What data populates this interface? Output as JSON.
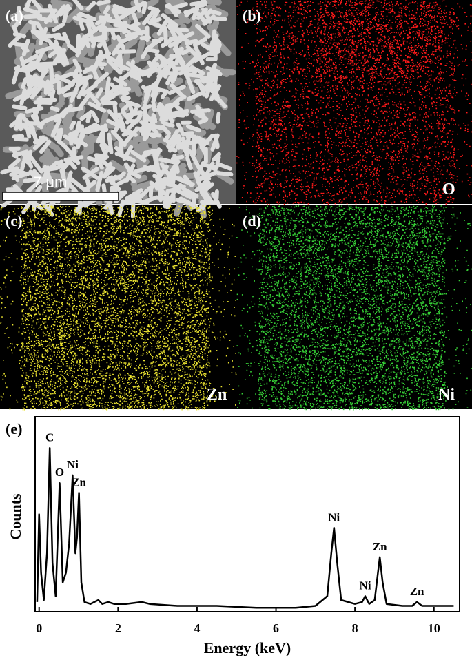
{
  "panels": [
    {
      "label": "(a)",
      "scale_bar": "7 μm"
    },
    {
      "label": "(b)",
      "element": "O"
    },
    {
      "label": "(c)",
      "element": "Zn"
    },
    {
      "label": "(d)",
      "element": "Ni"
    }
  ],
  "chart_data": {
    "type": "line",
    "panel_label": "(e)",
    "x_label": "Energy (keV)",
    "y_label": "Counts",
    "x": [
      -0.05,
      0.0,
      0.05,
      0.12,
      0.2,
      0.27,
      0.34,
      0.42,
      0.52,
      0.6,
      0.68,
      0.76,
      0.85,
      0.92,
      0.96,
      1.01,
      1.07,
      1.15,
      1.3,
      1.5,
      1.6,
      1.75,
      1.9,
      2.2,
      2.6,
      2.8,
      3.5,
      4.5,
      5.5,
      6.5,
      7.0,
      7.3,
      7.4,
      7.47,
      7.55,
      7.65,
      8.0,
      8.18,
      8.26,
      8.36,
      8.5,
      8.57,
      8.63,
      8.7,
      8.8,
      9.2,
      9.45,
      9.57,
      9.7,
      10.0,
      10.5
    ],
    "series": [
      {
        "color": "#000000",
        "values": [
          5,
          50,
          20,
          6,
          30,
          84,
          25,
          8,
          66,
          15,
          20,
          35,
          70,
          30,
          38,
          61,
          15,
          5,
          4,
          6,
          4,
          5,
          4,
          4,
          5,
          4,
          3,
          3,
          2,
          2,
          3,
          8,
          30,
          43,
          25,
          6,
          4,
          5,
          8,
          4,
          6,
          18,
          28,
          15,
          4,
          3,
          3,
          5,
          3,
          3,
          3
        ]
      }
    ],
    "annotations": [
      {
        "text": "C",
        "x": 0.27
      },
      {
        "text": "O",
        "x": 0.52
      },
      {
        "text": "Ni",
        "x": 0.85
      },
      {
        "text": "Zn",
        "x": 1.01
      },
      {
        "text": "Ni",
        "x": 7.47
      },
      {
        "text": "Ni",
        "x": 8.26
      },
      {
        "text": "Zn",
        "x": 8.63
      },
      {
        "text": "Zn",
        "x": 9.57
      }
    ],
    "xlim": [
      -0.1,
      10.65
    ],
    "ylim": [
      0,
      100
    ],
    "xticks": [
      0,
      2,
      4,
      6,
      8,
      10
    ]
  }
}
